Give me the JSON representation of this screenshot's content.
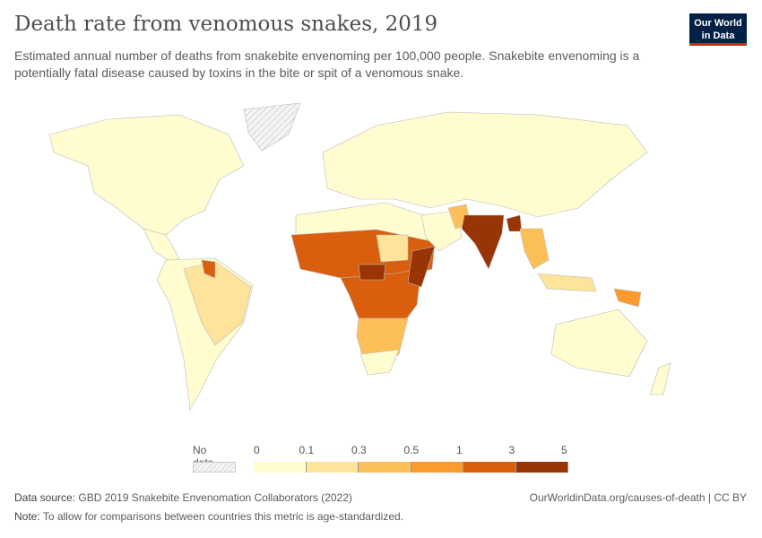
{
  "title": "Death rate from venomous snakes, 2019",
  "subtitle": "Estimated annual number of deaths from snakebite envenoming per 100,000 people. Snakebite envenoming is a potentially fatal disease caused by toxins in the bite or spit of a venomous snake.",
  "logo": {
    "line1": "Our World",
    "line2": "in Data"
  },
  "legend": {
    "no_data": "No data",
    "ticks": [
      "0",
      "0.1",
      "0.3",
      "0.5",
      "1",
      "3",
      "5"
    ],
    "colors": [
      "#fffccf",
      "#fee39a",
      "#fdbf57",
      "#fc9a2c",
      "#d95f0e",
      "#993404"
    ]
  },
  "footer": {
    "source_label": "Data source:",
    "source": "GBD 2019 Snakebite Envenomation Collaborators (2022)",
    "url": "OurWorldinData.org/causes-of-death | CC BY",
    "note_label": "Note:",
    "note": "To allow for comparisons between countries this metric is age-standardized."
  }
}
